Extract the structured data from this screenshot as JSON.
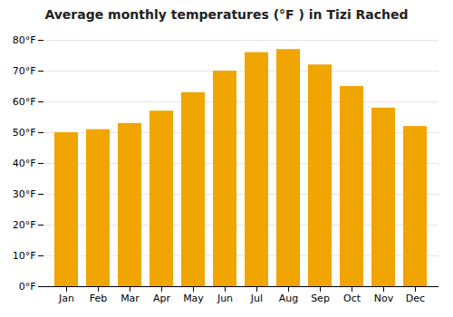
{
  "chart_data": {
    "type": "bar",
    "title": "Average monthly temperatures (°F ) in Tizi Rached",
    "categories": [
      "Jan",
      "Feb",
      "Mar",
      "Apr",
      "May",
      "Jun",
      "Jul",
      "Aug",
      "Sep",
      "Oct",
      "Nov",
      "Dec"
    ],
    "values": [
      50,
      51,
      53,
      57,
      63,
      70,
      76,
      77,
      72,
      65,
      58,
      52
    ],
    "color": "#F0A500",
    "ylim": [
      0,
      80
    ],
    "yticks": [
      {
        "value": 0,
        "label": "0°F"
      },
      {
        "value": 10,
        "label": "10°F"
      },
      {
        "value": 20,
        "label": "20°F"
      },
      {
        "value": 30,
        "label": "30°F"
      },
      {
        "value": 40,
        "label": "40°F"
      },
      {
        "value": 50,
        "label": "50°F"
      },
      {
        "value": 60,
        "label": "60°F"
      },
      {
        "value": 70,
        "label": "70°F"
      },
      {
        "value": 80,
        "label": "80°F"
      }
    ],
    "grid": true
  }
}
